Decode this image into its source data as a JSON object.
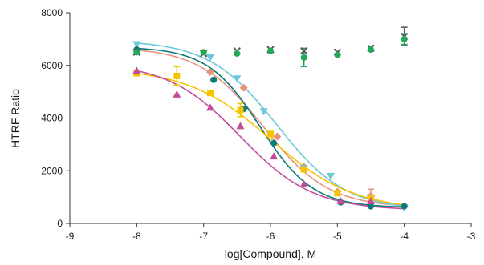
{
  "chart_data": {
    "type": "scatter",
    "xlabel": "log[Compound], M",
    "ylabel": "HTRF Ratio",
    "xlim": [
      -9,
      -3
    ],
    "ylim": [
      0,
      8000
    ],
    "x_ticks": [
      -9,
      -8,
      -7,
      -6,
      -5,
      -4,
      -3
    ],
    "y_ticks": [
      0,
      2000,
      4000,
      6000,
      8000
    ],
    "x_tick_labels": [
      "-9",
      "-8",
      "-7",
      "-6",
      "-5",
      "-4",
      "-3"
    ],
    "y_tick_labels": [
      "0",
      "2000",
      "4000",
      "6000",
      "8000"
    ],
    "grid": false,
    "legend": "none",
    "series": [
      {
        "color": "#e8927c",
        "marker": "diamond",
        "x": [
          -8,
          -6.9,
          -6.4,
          -5.9,
          -5.5,
          -5,
          -4.5,
          -4
        ],
        "y": [
          6550,
          5750,
          5150,
          3300,
          2150,
          1200,
          1050,
          650
        ],
        "err": [
          0,
          0,
          0,
          0,
          0,
          0,
          250,
          0
        ],
        "fit": {
          "top": 6700,
          "bottom": 600,
          "logec50": -6.1,
          "hill": 0.9
        }
      },
      {
        "color": "#6cc7dc",
        "marker": "triangle-down",
        "x": [
          -8,
          -6.9,
          -6.5,
          -6.1,
          -5.5,
          -5.1,
          -4.5,
          -4
        ],
        "y": [
          6800,
          6300,
          5500,
          4250,
          2100,
          1800,
          900,
          600
        ],
        "err": [
          0,
          0,
          0,
          0,
          0,
          0,
          0,
          0
        ],
        "fit": {
          "top": 6950,
          "bottom": 500,
          "logec50": -5.9,
          "hill": 0.85
        }
      },
      {
        "color": "#0a7b78",
        "marker": "circle",
        "x": [
          -8,
          -6.85,
          -6.4,
          -5.95,
          -4.95,
          -4.5,
          -4
        ],
        "y": [
          6600,
          5450,
          4350,
          3050,
          800,
          650,
          650
        ],
        "err": [
          0,
          0,
          0,
          0,
          0,
          0,
          0
        ],
        "fit": {
          "top": 6700,
          "bottom": 600,
          "logec50": -6.15,
          "hill": 1.1
        }
      },
      {
        "color": "#f5c400",
        "marker": "square",
        "x": [
          -8,
          -7.4,
          -6.9,
          -6.45,
          -6,
          -5.5,
          -5,
          -4.5
        ],
        "y": [
          5700,
          5600,
          4950,
          4300,
          3400,
          2050,
          1150,
          950
        ],
        "err": [
          0,
          350,
          0,
          250,
          0,
          0,
          0,
          0
        ],
        "fit": {
          "top": 5900,
          "bottom": 500,
          "logec50": -6.0,
          "hill": 0.7
        }
      },
      {
        "color": "#c24d9c",
        "marker": "triangle-up",
        "x": [
          -8,
          -7.4,
          -6.9,
          -6.45,
          -5.95,
          -5.5,
          -4.95,
          -4.5
        ],
        "y": [
          5800,
          4900,
          4400,
          3700,
          2550,
          1500,
          850,
          850
        ],
        "err": [
          0,
          0,
          0,
          0,
          0,
          0,
          0,
          0
        ],
        "fit": {
          "top": 6100,
          "bottom": 500,
          "logec50": -6.45,
          "hill": 0.8
        }
      },
      {
        "color": "#555555",
        "marker": "x",
        "x": [
          -8,
          -7,
          -6.5,
          -6,
          -5.5,
          -5,
          -4.5,
          -4
        ],
        "y": [
          6500,
          6450,
          6550,
          6600,
          6550,
          6500,
          6650,
          7100
        ],
        "err": [
          0,
          0,
          0,
          0,
          0,
          0,
          0,
          350
        ],
        "fit": null
      },
      {
        "color": "#23a85a",
        "marker": "circle",
        "x": [
          -8,
          -7,
          -6.5,
          -6,
          -5.5,
          -5,
          -4.5,
          -4
        ],
        "y": [
          6500,
          6500,
          6450,
          6550,
          6300,
          6400,
          6600,
          7000
        ],
        "err": [
          0,
          0,
          0,
          0,
          350,
          0,
          0,
          200
        ],
        "fit": null
      }
    ]
  }
}
